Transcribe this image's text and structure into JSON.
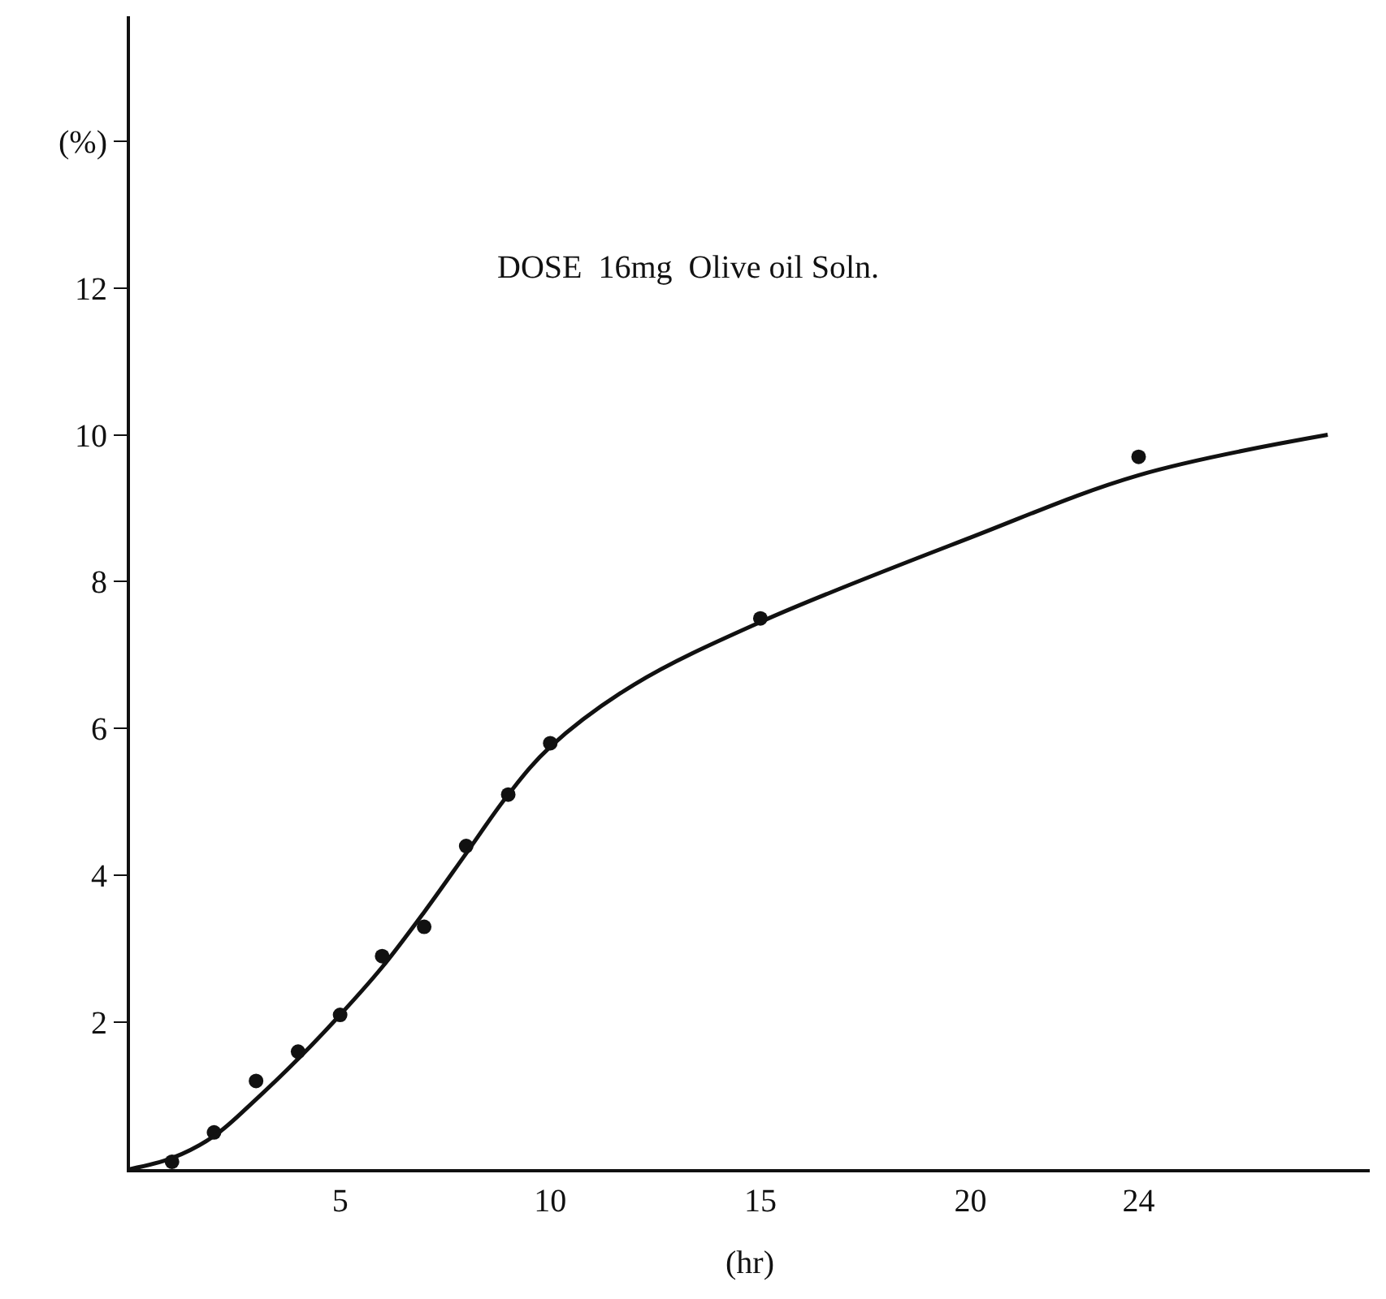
{
  "chart_data": {
    "type": "scatter",
    "annotations": [
      "DOSE  16mg  Olive oil Soln."
    ],
    "xlabel": "(hr)",
    "xlim": [
      0,
      29.5
    ],
    "xticks": [
      5,
      10,
      15,
      20,
      24
    ],
    "ylim": [
      0,
      15.7
    ],
    "yticks": [
      2,
      4,
      6,
      8,
      10,
      12,
      {
        "value": 14,
        "label": "(%)"
      }
    ],
    "grid": false,
    "legend": false,
    "line_style": "solid",
    "series": [
      {
        "marker": "circle",
        "color": "#111111",
        "x": [
          1,
          2,
          3,
          4,
          5,
          6,
          7,
          8,
          9,
          10,
          15,
          24
        ],
        "values": [
          0.1,
          0.5,
          1.2,
          1.6,
          2.1,
          2.9,
          3.3,
          4.4,
          5.1,
          5.8,
          7.5,
          9.7
        ]
      },
      {
        "type": "line",
        "marker": "none",
        "color": "#111111",
        "x": [
          0,
          1,
          2,
          3,
          4,
          5,
          6,
          7,
          8,
          9,
          10,
          12,
          15,
          20,
          24,
          28.5
        ],
        "values": [
          0,
          0.15,
          0.45,
          0.95,
          1.5,
          2.1,
          2.75,
          3.5,
          4.3,
          5.1,
          5.75,
          6.6,
          7.45,
          8.6,
          9.45,
          10.0
        ]
      }
    ]
  }
}
